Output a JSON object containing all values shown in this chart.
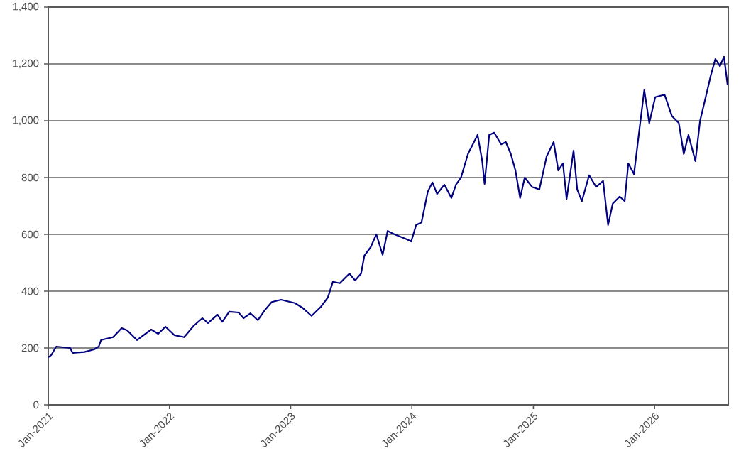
{
  "chart_data": {
    "type": "line",
    "color": "#000080",
    "grid": "y",
    "line_style": "solid",
    "xlim": [
      "2021-01-01",
      "2026-08-11"
    ],
    "ylim": [
      0,
      1400
    ],
    "xticks": [
      {
        "value": "2021-01-01",
        "label": "Jan-2021"
      },
      {
        "value": "2022-01-01",
        "label": "Jan-2022"
      },
      {
        "value": "2023-01-01",
        "label": "Jan-2023"
      },
      {
        "value": "2024-01-01",
        "label": "Jan-2024"
      },
      {
        "value": "2025-01-01",
        "label": "Jan-2025"
      },
      {
        "value": "2026-01-01",
        "label": "Jan-2026"
      }
    ],
    "yticks": [
      0,
      200,
      400,
      600,
      800,
      {
        "value": 1000,
        "label": "1,000"
      },
      {
        "value": 1200,
        "label": "1,200"
      },
      {
        "value": 1400,
        "label": "1,400"
      }
    ],
    "x": [
      "2021-01-01",
      "2021-01-10",
      "2021-01-25",
      "2021-03-08",
      "2021-03-15",
      "2021-04-20",
      "2021-05-19",
      "2021-06-02",
      "2021-06-09",
      "2021-07-15",
      "2021-08-10",
      "2021-08-27",
      "2021-09-25",
      "2021-11-07",
      "2021-11-28",
      "2021-12-20",
      "2022-01-16",
      "2022-02-14",
      "2022-03-15",
      "2022-04-10",
      "2022-04-27",
      "2022-05-26",
      "2022-06-09",
      "2022-06-30",
      "2022-07-28",
      "2022-08-12",
      "2022-09-02",
      "2022-09-24",
      "2022-10-15",
      "2022-11-05",
      "2022-12-03",
      "2023-01-14",
      "2023-02-05",
      "2023-03-05",
      "2023-04-02",
      "2023-04-23",
      "2023-05-08",
      "2023-05-29",
      "2023-06-27",
      "2023-07-14",
      "2023-08-01",
      "2023-08-11",
      "2023-08-30",
      "2023-09-16",
      "2023-10-05",
      "2023-10-20",
      "2023-11-10",
      "2023-12-16",
      "2023-12-30",
      "2024-01-14",
      "2024-01-30",
      "2024-02-18",
      "2024-03-03",
      "2024-03-17",
      "2024-04-08",
      "2024-04-29",
      "2024-05-13",
      "2024-05-28",
      "2024-06-18",
      "2024-07-17",
      "2024-07-31",
      "2024-08-07",
      "2024-08-21",
      "2024-09-05",
      "2024-09-26",
      "2024-10-10",
      "2024-10-25",
      "2024-11-08",
      "2024-11-22",
      "2024-12-06",
      "2024-12-28",
      "2025-01-19",
      "2025-02-10",
      "2025-03-03",
      "2025-03-17",
      "2025-03-31",
      "2025-04-11",
      "2025-05-02",
      "2025-05-13",
      "2025-05-27",
      "2025-06-18",
      "2025-07-09",
      "2025-07-30",
      "2025-08-14",
      "2025-08-28",
      "2025-09-18",
      "2025-10-03",
      "2025-10-14",
      "2025-10-31",
      "2025-11-17",
      "2025-12-01",
      "2025-12-16",
      "2026-01-03",
      "2026-01-31",
      "2026-02-22",
      "2026-03-15",
      "2026-03-30",
      "2026-04-13",
      "2026-05-04",
      "2026-05-18",
      "2026-06-04",
      "2026-06-19",
      "2026-07-03",
      "2026-07-17",
      "2026-07-29",
      "2026-08-09"
    ],
    "values": [
      167,
      175,
      205,
      200,
      183,
      186,
      195,
      205,
      228,
      238,
      270,
      262,
      228,
      265,
      250,
      275,
      245,
      238,
      278,
      305,
      288,
      317,
      292,
      328,
      325,
      305,
      322,
      298,
      333,
      362,
      370,
      358,
      342,
      313,
      345,
      378,
      433,
      428,
      462,
      438,
      462,
      525,
      555,
      600,
      528,
      612,
      600,
      583,
      575,
      633,
      642,
      750,
      783,
      742,
      775,
      728,
      775,
      800,
      883,
      950,
      858,
      778,
      950,
      958,
      917,
      925,
      883,
      825,
      728,
      800,
      767,
      758,
      875,
      925,
      825,
      850,
      725,
      895,
      758,
      717,
      808,
      767,
      788,
      633,
      708,
      733,
      717,
      850,
      812,
      975,
      1108,
      992,
      1083,
      1092,
      1017,
      992,
      883,
      950,
      858,
      1000,
      1083,
      1158,
      1217,
      1192,
      1225,
      1125
    ]
  }
}
